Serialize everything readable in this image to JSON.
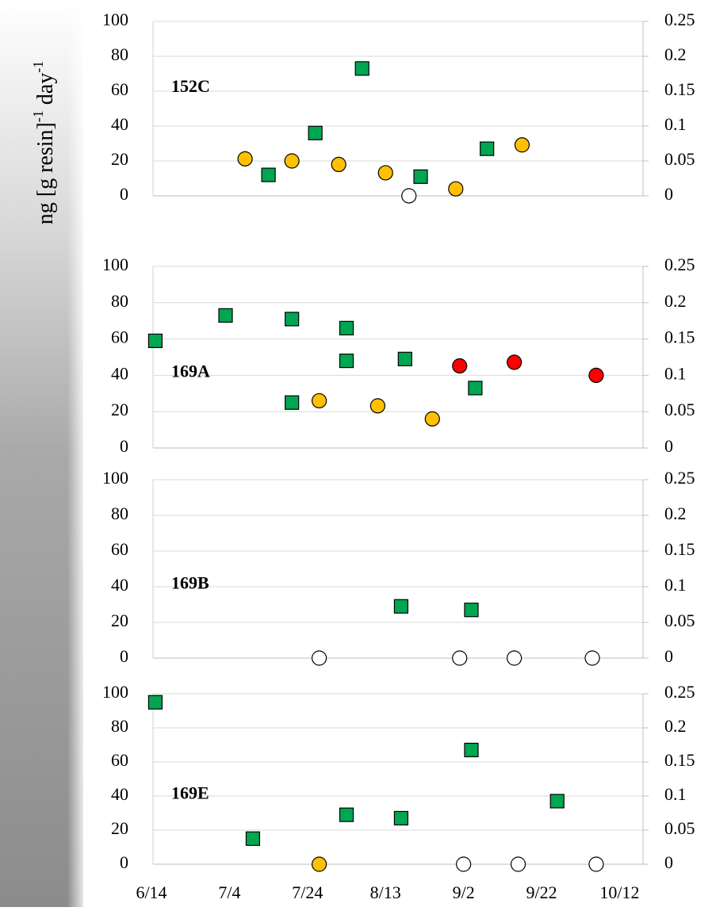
{
  "y_label": {
    "parts": [
      "ng  [g resin]",
      "-1",
      " day",
      "-1"
    ]
  },
  "chart_data": [
    {
      "type": "scatter",
      "title": "152C",
      "xlim": [
        "6/14",
        "10/18"
      ],
      "ylim": [
        0,
        100
      ],
      "yticks": [
        0,
        20,
        40,
        60,
        80,
        100
      ],
      "y2lim": [
        0,
        0.25
      ],
      "y2ticks": [
        0,
        0.05,
        0.1,
        0.15,
        0.2,
        0.25
      ],
      "grid": true,
      "series": [
        {
          "marker": "square",
          "color": "#00a651",
          "x": [
            "7/14",
            "7/26",
            "8/7",
            "8/22",
            "9/8"
          ],
          "values": [
            12,
            36,
            73,
            11,
            27
          ]
        },
        {
          "marker": "circle",
          "color": "#ffc000",
          "axis": "y2",
          "x": [
            "7/8",
            "7/20",
            "8/1",
            "8/13",
            "8/31",
            "9/17"
          ],
          "values": [
            0.053,
            0.05,
            0.045,
            0.033,
            0.01,
            0.073
          ]
        },
        {
          "marker": "circle",
          "color": "#ffffff",
          "axis": "y2",
          "x": [
            "8/19"
          ],
          "values": [
            0
          ]
        }
      ]
    },
    {
      "type": "scatter",
      "title": "169A",
      "xlim": [
        "6/14",
        "10/18"
      ],
      "ylim": [
        0,
        100
      ],
      "yticks": [
        0,
        20,
        40,
        60,
        80,
        100
      ],
      "y2lim": [
        0,
        0.25
      ],
      "y2ticks": [
        0,
        0.05,
        0.1,
        0.15,
        0.2,
        0.25
      ],
      "grid": true,
      "series": [
        {
          "marker": "square",
          "color": "#00a651",
          "x": [
            "6/15",
            "7/3",
            "7/20",
            "7/20",
            "8/3",
            "8/3",
            "8/18",
            "9/5"
          ],
          "values": [
            59,
            73,
            71,
            25,
            66,
            48,
            49,
            33
          ]
        },
        {
          "marker": "circle",
          "color": "#ffc000",
          "axis": "y2",
          "x": [
            "7/27",
            "8/11",
            "8/25"
          ],
          "values": [
            0.065,
            0.058,
            0.04
          ]
        },
        {
          "marker": "circle",
          "color": "#ff0000",
          "axis": "y2",
          "x": [
            "9/1",
            "9/15",
            "10/6"
          ],
          "values": [
            0.113,
            0.118,
            0.1
          ]
        }
      ]
    },
    {
      "type": "scatter",
      "title": "169B",
      "xlim": [
        "6/14",
        "10/18"
      ],
      "ylim": [
        0,
        100
      ],
      "yticks": [
        0,
        20,
        40,
        60,
        80,
        100
      ],
      "y2lim": [
        0,
        0.25
      ],
      "y2ticks": [
        0,
        0.05,
        0.1,
        0.15,
        0.2,
        0.25
      ],
      "grid": true,
      "series": [
        {
          "marker": "square",
          "color": "#00a651",
          "x": [
            "8/17",
            "9/4"
          ],
          "values": [
            29,
            27
          ]
        },
        {
          "marker": "circle",
          "color": "#ffffff",
          "axis": "y2",
          "x": [
            "7/27",
            "9/1",
            "9/15",
            "10/5"
          ],
          "values": [
            0,
            0,
            0,
            0
          ]
        }
      ]
    },
    {
      "type": "scatter",
      "title": "169E",
      "xlim": [
        "6/14",
        "10/18"
      ],
      "xticks": [
        "6/14",
        "7/4",
        "7/24",
        "8/13",
        "9/2",
        "9/22",
        "10/12"
      ],
      "ylim": [
        0,
        100
      ],
      "yticks": [
        0,
        20,
        40,
        60,
        80,
        100
      ],
      "y2lim": [
        0,
        0.25
      ],
      "y2ticks": [
        0,
        0.05,
        0.1,
        0.15,
        0.2,
        0.25
      ],
      "grid": true,
      "series": [
        {
          "marker": "square",
          "color": "#00a651",
          "x": [
            "6/15",
            "7/10",
            "8/3",
            "8/17",
            "9/4",
            "9/26"
          ],
          "values": [
            95,
            15,
            29,
            27,
            67,
            37
          ]
        },
        {
          "marker": "circle",
          "color": "#ffc000",
          "axis": "y2",
          "x": [
            "7/27"
          ],
          "values": [
            0
          ]
        },
        {
          "marker": "circle",
          "color": "#ffffff",
          "axis": "y2",
          "x": [
            "9/2",
            "9/16",
            "10/6"
          ],
          "values": [
            0,
            0,
            0
          ]
        }
      ]
    }
  ]
}
